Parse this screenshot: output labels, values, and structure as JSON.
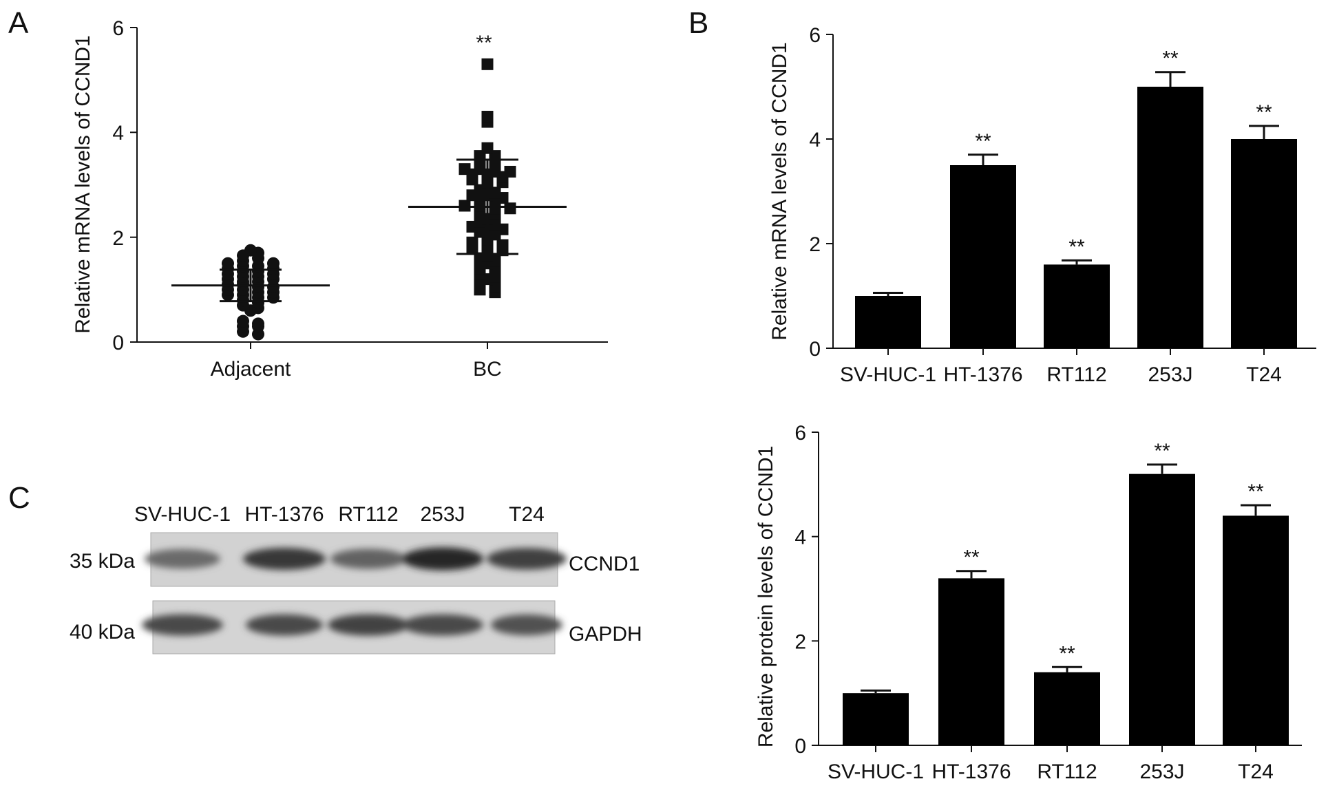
{
  "panels": {
    "A": "A",
    "B": "B",
    "C": "C"
  },
  "chart_data": [
    {
      "id": "A",
      "type": "scatter",
      "ylabel": "Relative mRNA levels of CCND1",
      "xlabel": "",
      "ylim": [
        0,
        6
      ],
      "yticks": [
        "0",
        "2",
        "4",
        "6"
      ],
      "categories": [
        "Adjacent",
        "BC"
      ],
      "series": [
        {
          "name": "",
          "category": "Adjacent",
          "marker": "circle",
          "mean": 1.08,
          "sd": 0.3,
          "values": [
            1.5,
            1.45,
            1.55,
            1.65,
            1.75,
            1.7,
            1.6,
            1.45,
            1.4,
            1.35,
            1.3,
            1.35,
            1.4,
            1.5,
            1.25,
            1.2,
            1.15,
            1.15,
            1.2,
            1.25,
            1.3,
            1.1,
            1.1,
            1.05,
            1.05,
            1.0,
            1.0,
            0.95,
            0.95,
            0.9,
            0.9,
            0.85,
            0.85,
            0.8,
            0.75,
            0.7,
            0.65,
            0.6,
            0.4,
            0.35,
            0.3,
            0.3,
            0.2,
            0.15
          ]
        },
        {
          "name": "",
          "category": "BC",
          "marker": "square",
          "mean": 2.58,
          "sd": 0.9,
          "significance": "**",
          "values": [
            5.3,
            4.3,
            4.2,
            3.7,
            3.55,
            3.55,
            3.5,
            3.45,
            3.3,
            3.3,
            3.25,
            3.25,
            3.2,
            3.2,
            3.15,
            3.1,
            3.05,
            3.05,
            3.0,
            2.9,
            2.85,
            2.8,
            2.8,
            2.75,
            2.7,
            2.65,
            2.6,
            2.6,
            2.55,
            2.55,
            2.5,
            2.45,
            2.35,
            2.3,
            2.25,
            2.2,
            2.15,
            2.15,
            2.1,
            2.05,
            1.95,
            1.9,
            1.85,
            1.85,
            1.8,
            1.8,
            1.75,
            1.65,
            1.6,
            1.55,
            1.5,
            1.4,
            1.35,
            1.3,
            1.25,
            1.2,
            1.1,
            1.05,
            1.0,
            0.95
          ]
        }
      ]
    },
    {
      "id": "B-mRNA",
      "type": "bar",
      "ylabel": "Relative mRNA levels of CCND1",
      "xlabel": "",
      "ylim": [
        0,
        6
      ],
      "yticks": [
        "0",
        "2",
        "4",
        "6"
      ],
      "categories": [
        "SV-HUC-1",
        "HT-1376",
        "RT112",
        "253J",
        "T24"
      ],
      "values": [
        1.0,
        3.5,
        1.6,
        5.0,
        4.0
      ],
      "errors": [
        0.06,
        0.2,
        0.08,
        0.28,
        0.25
      ],
      "significance": [
        "",
        "**",
        "**",
        "**",
        "**"
      ]
    },
    {
      "id": "B-protein",
      "type": "bar",
      "ylabel": "Relative protein levels of CCND1",
      "xlabel": "",
      "ylim": [
        0,
        6
      ],
      "yticks": [
        "0",
        "2",
        "4",
        "6"
      ],
      "categories": [
        "SV-HUC-1",
        "HT-1376",
        "RT112",
        "253J",
        "T24"
      ],
      "values": [
        1.0,
        3.2,
        1.4,
        5.2,
        4.4
      ],
      "errors": [
        0.05,
        0.14,
        0.1,
        0.18,
        0.2
      ],
      "significance": [
        "",
        "**",
        "**",
        "**",
        "**"
      ]
    }
  ],
  "blot": {
    "lanes": [
      "SV-HUC-1",
      "HT-1376",
      "RT112",
      "253J",
      "T24"
    ],
    "rows": [
      {
        "marker": "35 kDa",
        "protein": "CCND1",
        "intensity": [
          0.55,
          0.85,
          0.6,
          0.95,
          0.8
        ]
      },
      {
        "marker": "40 kDa",
        "protein": "GAPDH",
        "intensity": [
          0.75,
          0.75,
          0.78,
          0.75,
          0.7
        ]
      }
    ]
  }
}
